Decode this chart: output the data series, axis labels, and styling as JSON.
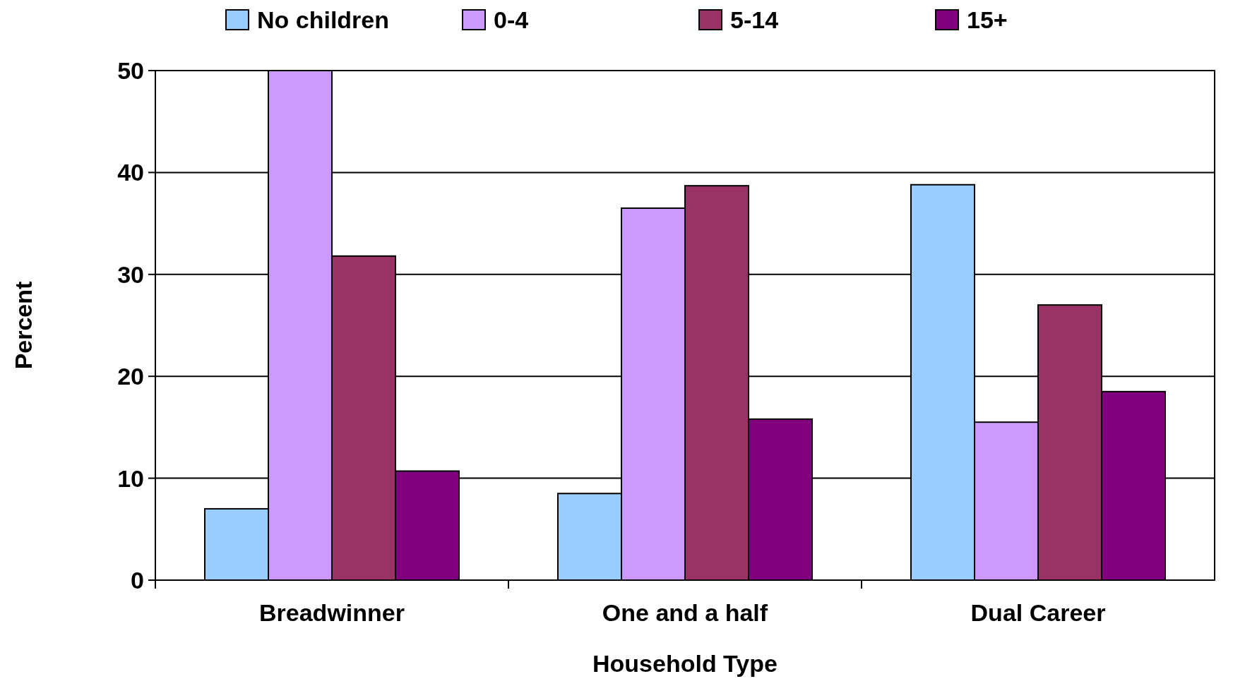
{
  "chart_data": {
    "type": "bar",
    "xlabel": "Household Type",
    "ylabel": "Percent",
    "categories": [
      "Breadwinner",
      "One and a half",
      "Dual Career"
    ],
    "series": [
      {
        "name": "No children",
        "color": "#99ccff",
        "values": [
          7,
          8.5,
          38.8
        ]
      },
      {
        "name": "0-4",
        "color": "#cc99ff",
        "values": [
          50,
          36.5,
          15.5
        ]
      },
      {
        "name": "5-14",
        "color": "#993366",
        "values": [
          31.8,
          38.7,
          27
        ]
      },
      {
        "name": "15+",
        "color": "#800080",
        "values": [
          10.7,
          15.8,
          18.5
        ]
      }
    ],
    "ylim": [
      0,
      50
    ],
    "yticks": [
      0,
      10,
      20,
      30,
      40,
      50
    ],
    "grid": "y",
    "legend": "top"
  }
}
